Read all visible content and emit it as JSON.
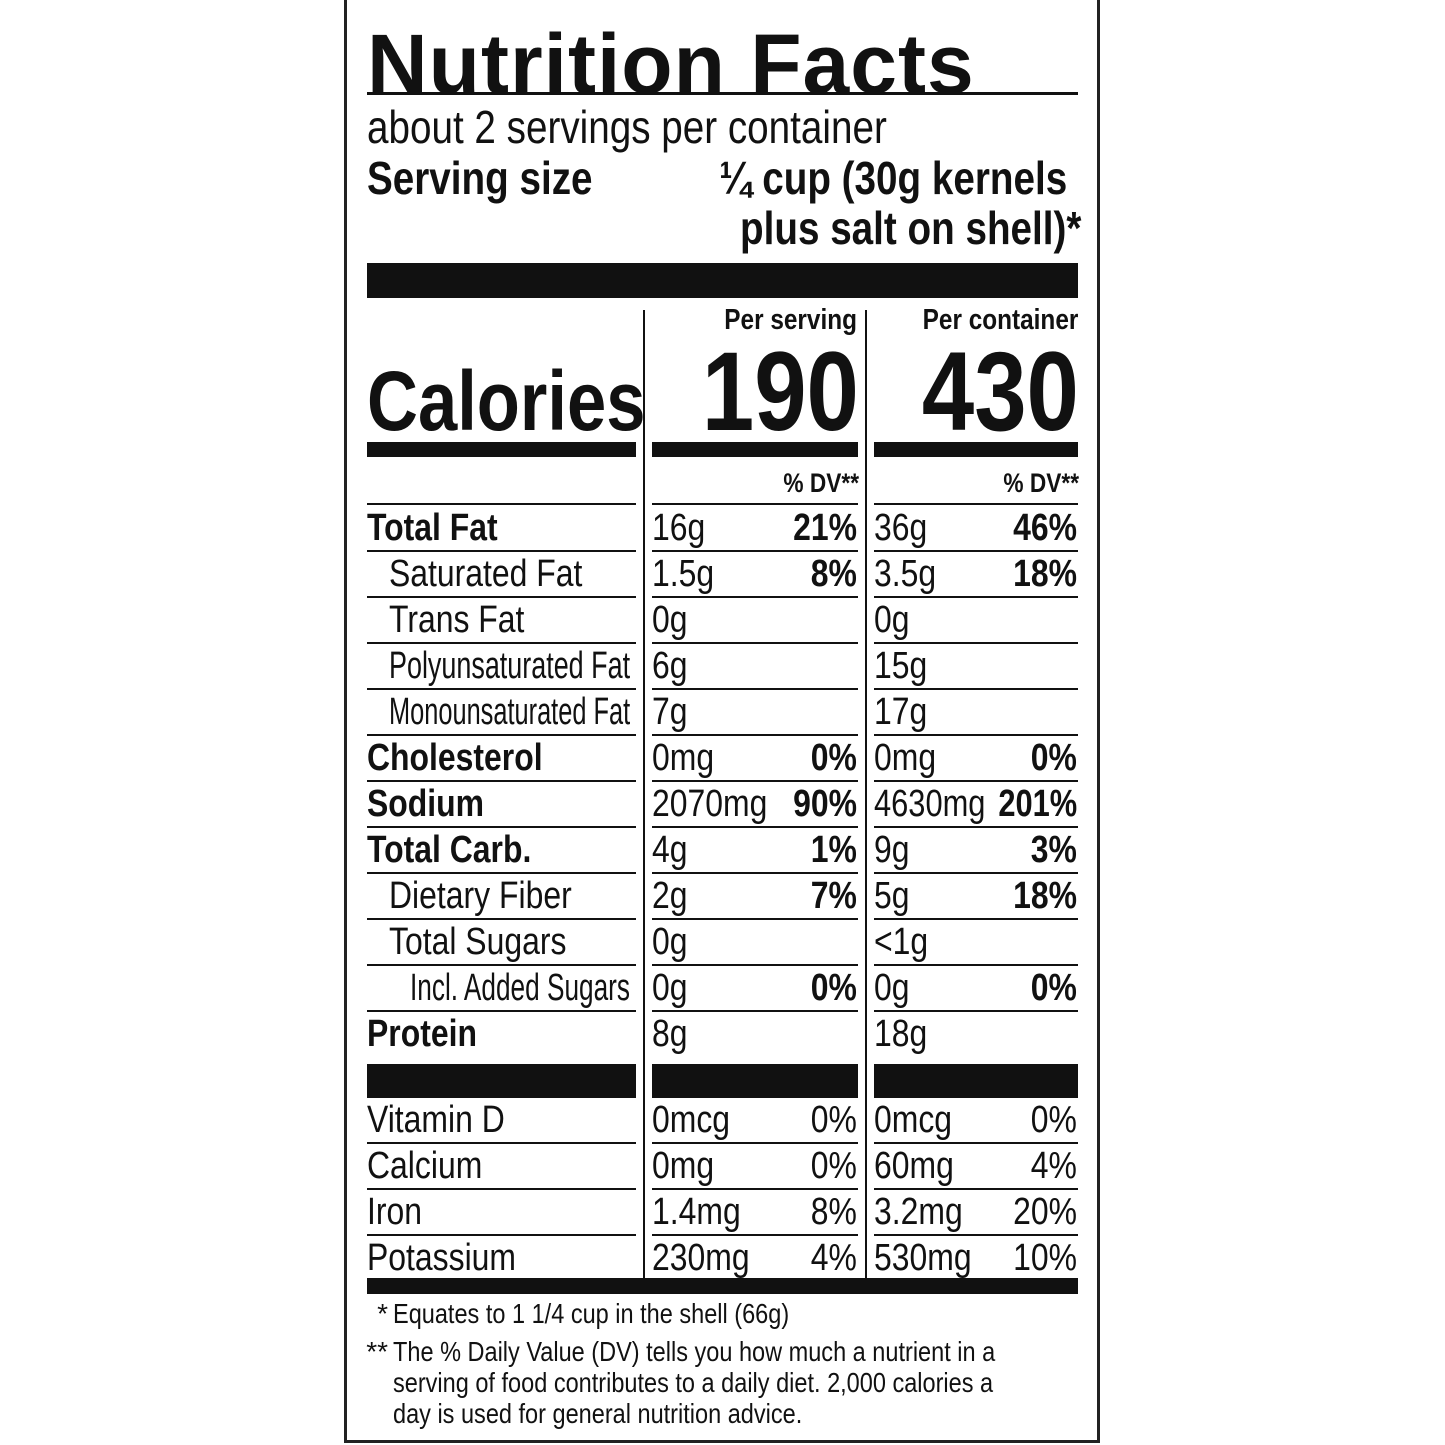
{
  "title": "Nutrition Facts",
  "servings_per_container": "about 2 servings per container",
  "serving_size_label": "Serving size",
  "serving_size_value_line1": "¼ cup (30g kernels",
  "serving_size_value_line2": "plus salt on shell)*",
  "calories_label": "Calories",
  "columns": [
    {
      "header": "Per serving",
      "calories": "190",
      "dv_header": "% DV**"
    },
    {
      "header": "Per container",
      "calories": "430",
      "dv_header": "% DV**"
    }
  ],
  "nutrients": [
    {
      "label": "Total Fat",
      "bold": true,
      "indent": 0,
      "serving": {
        "amount": "16g",
        "dv": "21%"
      },
      "container": {
        "amount": "36g",
        "dv": "46%"
      }
    },
    {
      "label": "Saturated Fat",
      "bold": false,
      "indent": 1,
      "serving": {
        "amount": "1.5g",
        "dv": "8%"
      },
      "container": {
        "amount": "3.5g",
        "dv": "18%"
      }
    },
    {
      "label": "Trans Fat",
      "bold": false,
      "indent": 1,
      "serving": {
        "amount": "0g",
        "dv": ""
      },
      "container": {
        "amount": "0g",
        "dv": ""
      }
    },
    {
      "label": "Polyunsaturated Fat",
      "bold": false,
      "indent": 1,
      "serving": {
        "amount": "6g",
        "dv": ""
      },
      "container": {
        "amount": "15g",
        "dv": ""
      }
    },
    {
      "label": "Monounsaturated Fat",
      "bold": false,
      "indent": 1,
      "serving": {
        "amount": "7g",
        "dv": ""
      },
      "container": {
        "amount": "17g",
        "dv": ""
      }
    },
    {
      "label": "Cholesterol",
      "bold": true,
      "indent": 0,
      "serving": {
        "amount": "0mg",
        "dv": "0%"
      },
      "container": {
        "amount": "0mg",
        "dv": "0%"
      }
    },
    {
      "label": "Sodium",
      "bold": true,
      "indent": 0,
      "serving": {
        "amount": "2070mg",
        "dv": "90%"
      },
      "container": {
        "amount": "4630mg",
        "dv": "201%"
      }
    },
    {
      "label": "Total Carb.",
      "bold": true,
      "indent": 0,
      "serving": {
        "amount": "4g",
        "dv": "1%"
      },
      "container": {
        "amount": "9g",
        "dv": "3%"
      }
    },
    {
      "label": "Dietary Fiber",
      "bold": false,
      "indent": 1,
      "serving": {
        "amount": "2g",
        "dv": "7%"
      },
      "container": {
        "amount": "5g",
        "dv": "18%"
      }
    },
    {
      "label": "Total Sugars",
      "bold": false,
      "indent": 1,
      "serving": {
        "amount": "0g",
        "dv": ""
      },
      "container": {
        "amount": "<1g",
        "dv": ""
      }
    },
    {
      "label": "Incl. Added Sugars",
      "bold": false,
      "indent": 2,
      "serving": {
        "amount": "0g",
        "dv": "0%"
      },
      "container": {
        "amount": "0g",
        "dv": "0%"
      }
    },
    {
      "label": "Protein",
      "bold": true,
      "indent": 0,
      "serving": {
        "amount": "8g",
        "dv": ""
      },
      "container": {
        "amount": "18g",
        "dv": ""
      }
    }
  ],
  "vitamins": [
    {
      "label": "Vitamin D",
      "serving": {
        "amount": "0mcg",
        "dv": "0%"
      },
      "container": {
        "amount": "0mcg",
        "dv": "0%"
      }
    },
    {
      "label": "Calcium",
      "serving": {
        "amount": "0mg",
        "dv": "0%"
      },
      "container": {
        "amount": "60mg",
        "dv": "4%"
      }
    },
    {
      "label": "Iron",
      "serving": {
        "amount": "1.4mg",
        "dv": "8%"
      },
      "container": {
        "amount": "3.2mg",
        "dv": "20%"
      }
    },
    {
      "label": "Potassium",
      "serving": {
        "amount": "230mg",
        "dv": "4%"
      },
      "container": {
        "amount": "530mg",
        "dv": "10%"
      }
    }
  ],
  "footnotes": [
    {
      "mark": "*",
      "text": "Equates to 1 1/4 cup in the shell (66g)"
    },
    {
      "mark": "**",
      "lines": [
        "The % Daily Value (DV) tells you how much a nutrient in a",
        "serving of food contributes to a daily diet. 2,000 calories a",
        "day is used for general nutrition advice."
      ]
    }
  ]
}
